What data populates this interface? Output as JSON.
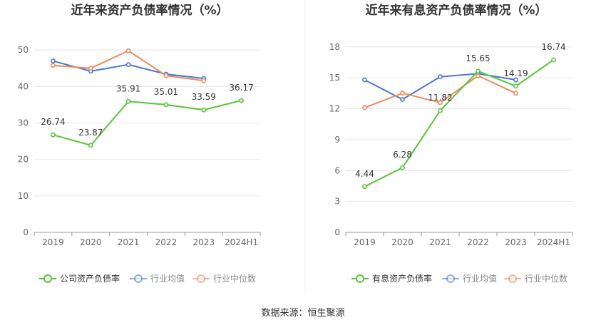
{
  "source_label": "数据来源：恒生聚源",
  "chart_data": [
    {
      "type": "line",
      "title": "近年来资产负债率情况（%）",
      "categories": [
        "2019",
        "2020",
        "2021",
        "2022",
        "2023",
        "2024H1"
      ],
      "yticks": [
        0,
        10,
        20,
        30,
        40,
        50
      ],
      "ylim": [
        0,
        52
      ],
      "series": [
        {
          "name": "公司资产负债率",
          "color": "#5bc43a",
          "values": [
            26.74,
            23.87,
            35.91,
            35.01,
            33.59,
            36.17
          ],
          "labels": [
            "26.74",
            "23.87",
            "35.91",
            "35.01",
            "33.59",
            "36.17"
          ]
        },
        {
          "name": "行业均值",
          "color": "#4a78d8",
          "values": [
            47.0,
            44.2,
            46.0,
            43.4,
            42.2,
            null
          ]
        },
        {
          "name": "行业中位数",
          "color": "#f08a5d",
          "values": [
            45.8,
            45.0,
            49.8,
            43.0,
            41.6,
            null
          ]
        }
      ]
    },
    {
      "type": "line",
      "title": "近年来有息资产负债率情况（%）",
      "categories": [
        "2019",
        "2020",
        "2021",
        "2022",
        "2023",
        "2024H1"
      ],
      "yticks": [
        0,
        3,
        6,
        9,
        12,
        15,
        18
      ],
      "ylim": [
        0,
        18.4
      ],
      "series": [
        {
          "name": "有息资产负债率",
          "color": "#5bc43a",
          "values": [
            4.44,
            6.28,
            11.82,
            15.65,
            14.19,
            16.74
          ],
          "labels": [
            "4.44",
            "6.28",
            "11.82",
            "15.65",
            "14.19",
            "16.74"
          ]
        },
        {
          "name": "行业均值",
          "color": "#4a78d8",
          "values": [
            14.8,
            12.9,
            15.1,
            15.4,
            14.8,
            null
          ]
        },
        {
          "name": "行业中位数",
          "color": "#f08a5d",
          "values": [
            12.1,
            13.5,
            12.6,
            15.2,
            13.5,
            null
          ]
        }
      ]
    }
  ]
}
